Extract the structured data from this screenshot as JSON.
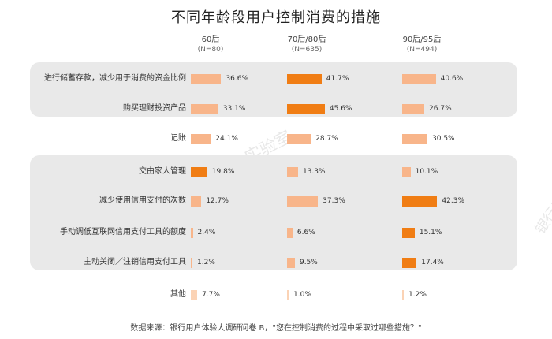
{
  "title": "不同年龄段用户控制消费的措施",
  "source": "数据来源：银行用户体验大调研问卷 B，\"您在控制消费的过程中采取过哪些措施？\"",
  "watermark": "银行用户体验联合实验室",
  "colors": {
    "dark": "#f07d14",
    "light": "#f8b58a",
    "pale": "#fbd3b5"
  },
  "chart_data": {
    "type": "bar",
    "unit": "%",
    "series": [
      {
        "name": "60后",
        "n": "(N=80)",
        "values": [
          36.6,
          33.1,
          24.1,
          19.8,
          12.7,
          2.4,
          1.2,
          7.7
        ]
      },
      {
        "name": "70后/80后",
        "n": "(N=635)",
        "values": [
          41.7,
          45.6,
          28.7,
          13.3,
          37.3,
          6.6,
          9.5,
          1.0
        ]
      },
      {
        "name": "90后/95后",
        "n": "(N=494)",
        "values": [
          40.6,
          26.7,
          30.5,
          10.1,
          42.3,
          15.1,
          17.4,
          1.2
        ]
      }
    ],
    "categories": [
      "进行储蓄存款，减少用于消费的资金比例",
      "购买理财投资产品",
      "记账",
      "交由家人管理",
      "减少使用信用支付的次数",
      "手动调低互联网信用支付工具的额度",
      "主动关闭／注销信用支付工具",
      "其他"
    ],
    "value_labels": [
      [
        "36.6%",
        "41.7%",
        "40.6%"
      ],
      [
        "33.1%",
        "45.6%",
        "26.7%"
      ],
      [
        "24.1%",
        "28.7%",
        "30.5%"
      ],
      [
        "19.8%",
        "13.3%",
        "10.1%"
      ],
      [
        "12.7%",
        "37.3%",
        "42.3%"
      ],
      [
        "2.4%",
        "6.6%",
        "15.1%"
      ],
      [
        "1.2%",
        "9.5%",
        "17.4%"
      ],
      [
        "7.7%",
        "1.0%",
        "1.2%"
      ]
    ],
    "highlight": [
      [
        false,
        true,
        false
      ],
      [
        false,
        true,
        false
      ],
      [
        false,
        false,
        false
      ],
      [
        true,
        false,
        false
      ],
      [
        false,
        false,
        true
      ],
      [
        false,
        false,
        true
      ],
      [
        false,
        false,
        true
      ],
      [
        false,
        false,
        false
      ]
    ],
    "groups": [
      {
        "rows": [
          0,
          1
        ]
      },
      {
        "rows": [
          3,
          4,
          5,
          6
        ]
      }
    ]
  }
}
